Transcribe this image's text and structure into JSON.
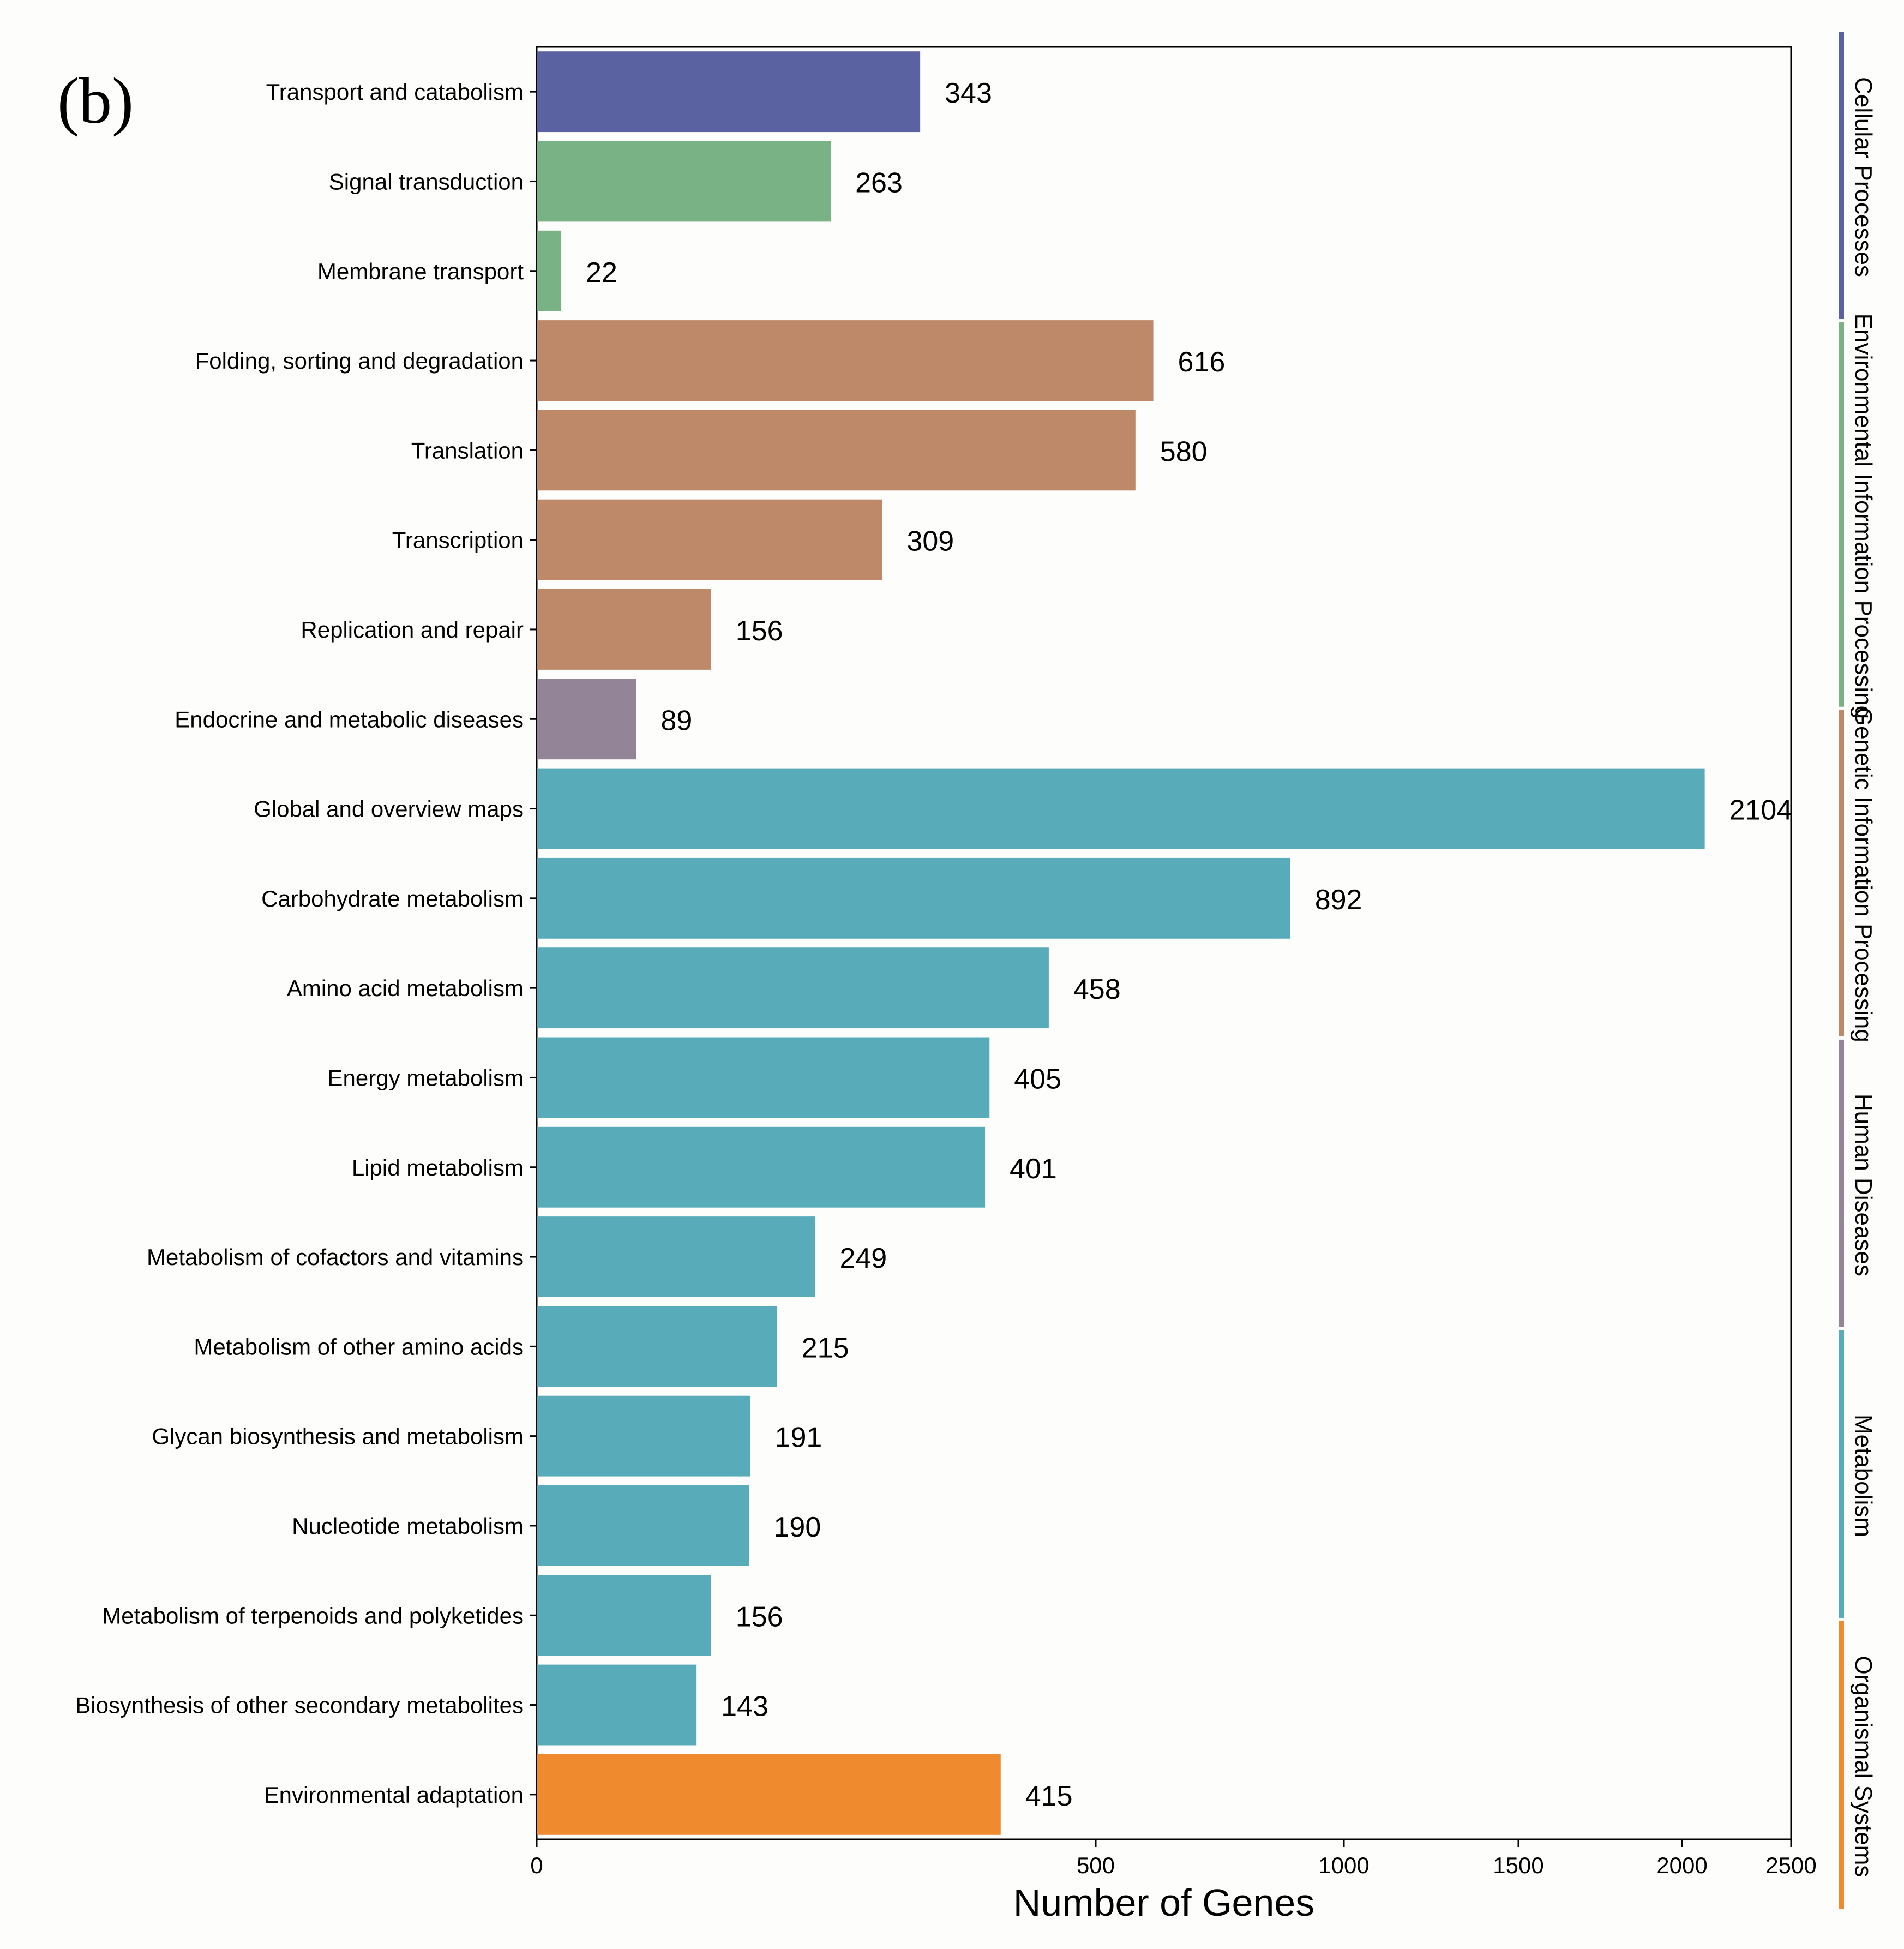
{
  "panel_label": "(b)",
  "colors": {
    "Cellular Processes": "#5b62a1",
    "Environmental Information Processing": "#79b285",
    "Genetic Information Processing": "#be8968",
    "Human Diseases": "#938497",
    "Metabolism": "#58acba",
    "Organismal Systems": "#ef8a2e",
    "background": "#fdfdfb",
    "axis": "#000000",
    "text": "#000000"
  },
  "chart_data": {
    "type": "bar",
    "orientation": "horizontal",
    "title": "",
    "xlabel": "Number of Genes",
    "ylabel": "",
    "categories": [
      "Transport and catabolism",
      "Signal transduction",
      "Membrane transport",
      "Folding, sorting and degradation",
      "Translation",
      "Transcription",
      "Replication and repair",
      "Endocrine and metabolic diseases",
      "Global and overview maps",
      "Carbohydrate metabolism",
      "Amino acid metabolism",
      "Energy metabolism",
      "Lipid metabolism",
      "Metabolism of cofactors and vitamins",
      "Metabolism of other amino acids",
      "Glycan biosynthesis and metabolism",
      "Nucleotide metabolism",
      "Metabolism of terpenoids and polyketides",
      "Biosynthesis of other secondary metabolites",
      "Environmental adaptation"
    ],
    "values": [
      343,
      263,
      22,
      616,
      580,
      309,
      156,
      89,
      2104,
      892,
      458,
      405,
      401,
      249,
      215,
      191,
      190,
      156,
      143,
      415
    ],
    "value_labels": [
      "343",
      "263",
      "22",
      "616",
      "580",
      "309",
      "156",
      "89",
      "2104",
      "892",
      "458",
      "405",
      "401",
      "249",
      "215",
      "191",
      "190",
      "156",
      "143",
      "415"
    ],
    "groups": [
      "Cellular Processes",
      "Environmental Information Processing",
      "Environmental Information Processing",
      "Genetic Information Processing",
      "Genetic Information Processing",
      "Genetic Information Processing",
      "Genetic Information Processing",
      "Human Diseases",
      "Metabolism",
      "Metabolism",
      "Metabolism",
      "Metabolism",
      "Metabolism",
      "Metabolism",
      "Metabolism",
      "Metabolism",
      "Metabolism",
      "Metabolism",
      "Metabolism",
      "Organismal Systems"
    ],
    "x_ticks": [
      0,
      500,
      1000,
      1500,
      2000,
      2500
    ],
    "x_tick_labels": [
      "0",
      "500",
      "1000",
      "1500",
      "2000",
      "2500"
    ],
    "x_tick_values_on_axis": [
      0,
      1025,
      1480,
      1800,
      2100,
      2300
    ],
    "xlim": [
      0,
      2300
    ],
    "legend_strip": {
      "placement": "right",
      "labels": [
        "Cellular Processes",
        "Environmental Information Processing",
        "Genetic Information Processing",
        "Human Diseases",
        "Metabolism",
        "Organismal Systems"
      ],
      "share": [
        3,
        4,
        3.4,
        3,
        3,
        3
      ]
    },
    "grid": false
  }
}
